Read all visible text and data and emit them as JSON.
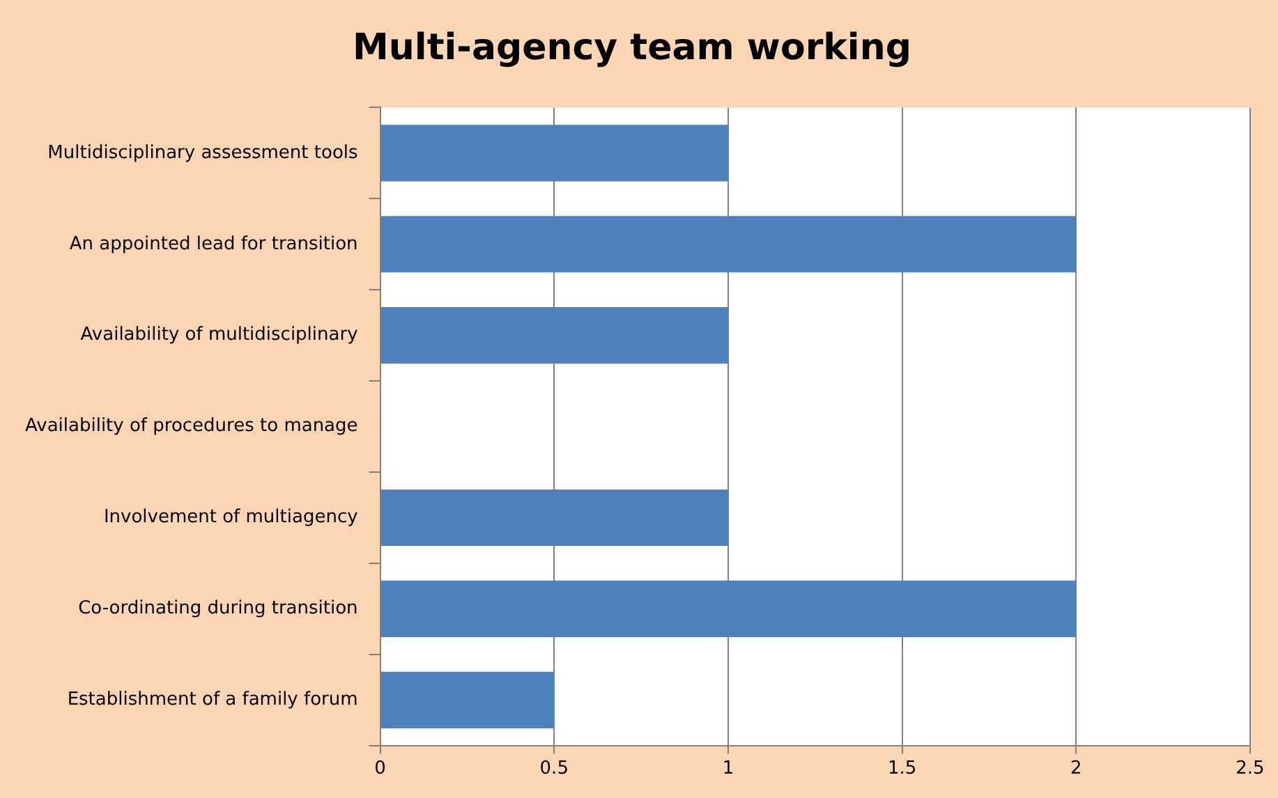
{
  "chart_data": {
    "type": "bar",
    "orientation": "horizontal",
    "title": "Multi-agency team working",
    "categories": [
      "Multidisciplinary assessment tools",
      "An appointed lead for transition",
      "Availability of multidisciplinary",
      "Availability of procedures to manage",
      "Involvement of multiagency",
      "Co-ordinating during transition",
      "Establishment of a family forum"
    ],
    "values": [
      1,
      2,
      1,
      0,
      1,
      2,
      0.5
    ],
    "color": "#4f81bd",
    "xlim": [
      0,
      2.5
    ],
    "xticks": [
      0,
      0.5,
      1,
      1.5,
      2,
      2.5
    ],
    "grid": "x"
  }
}
